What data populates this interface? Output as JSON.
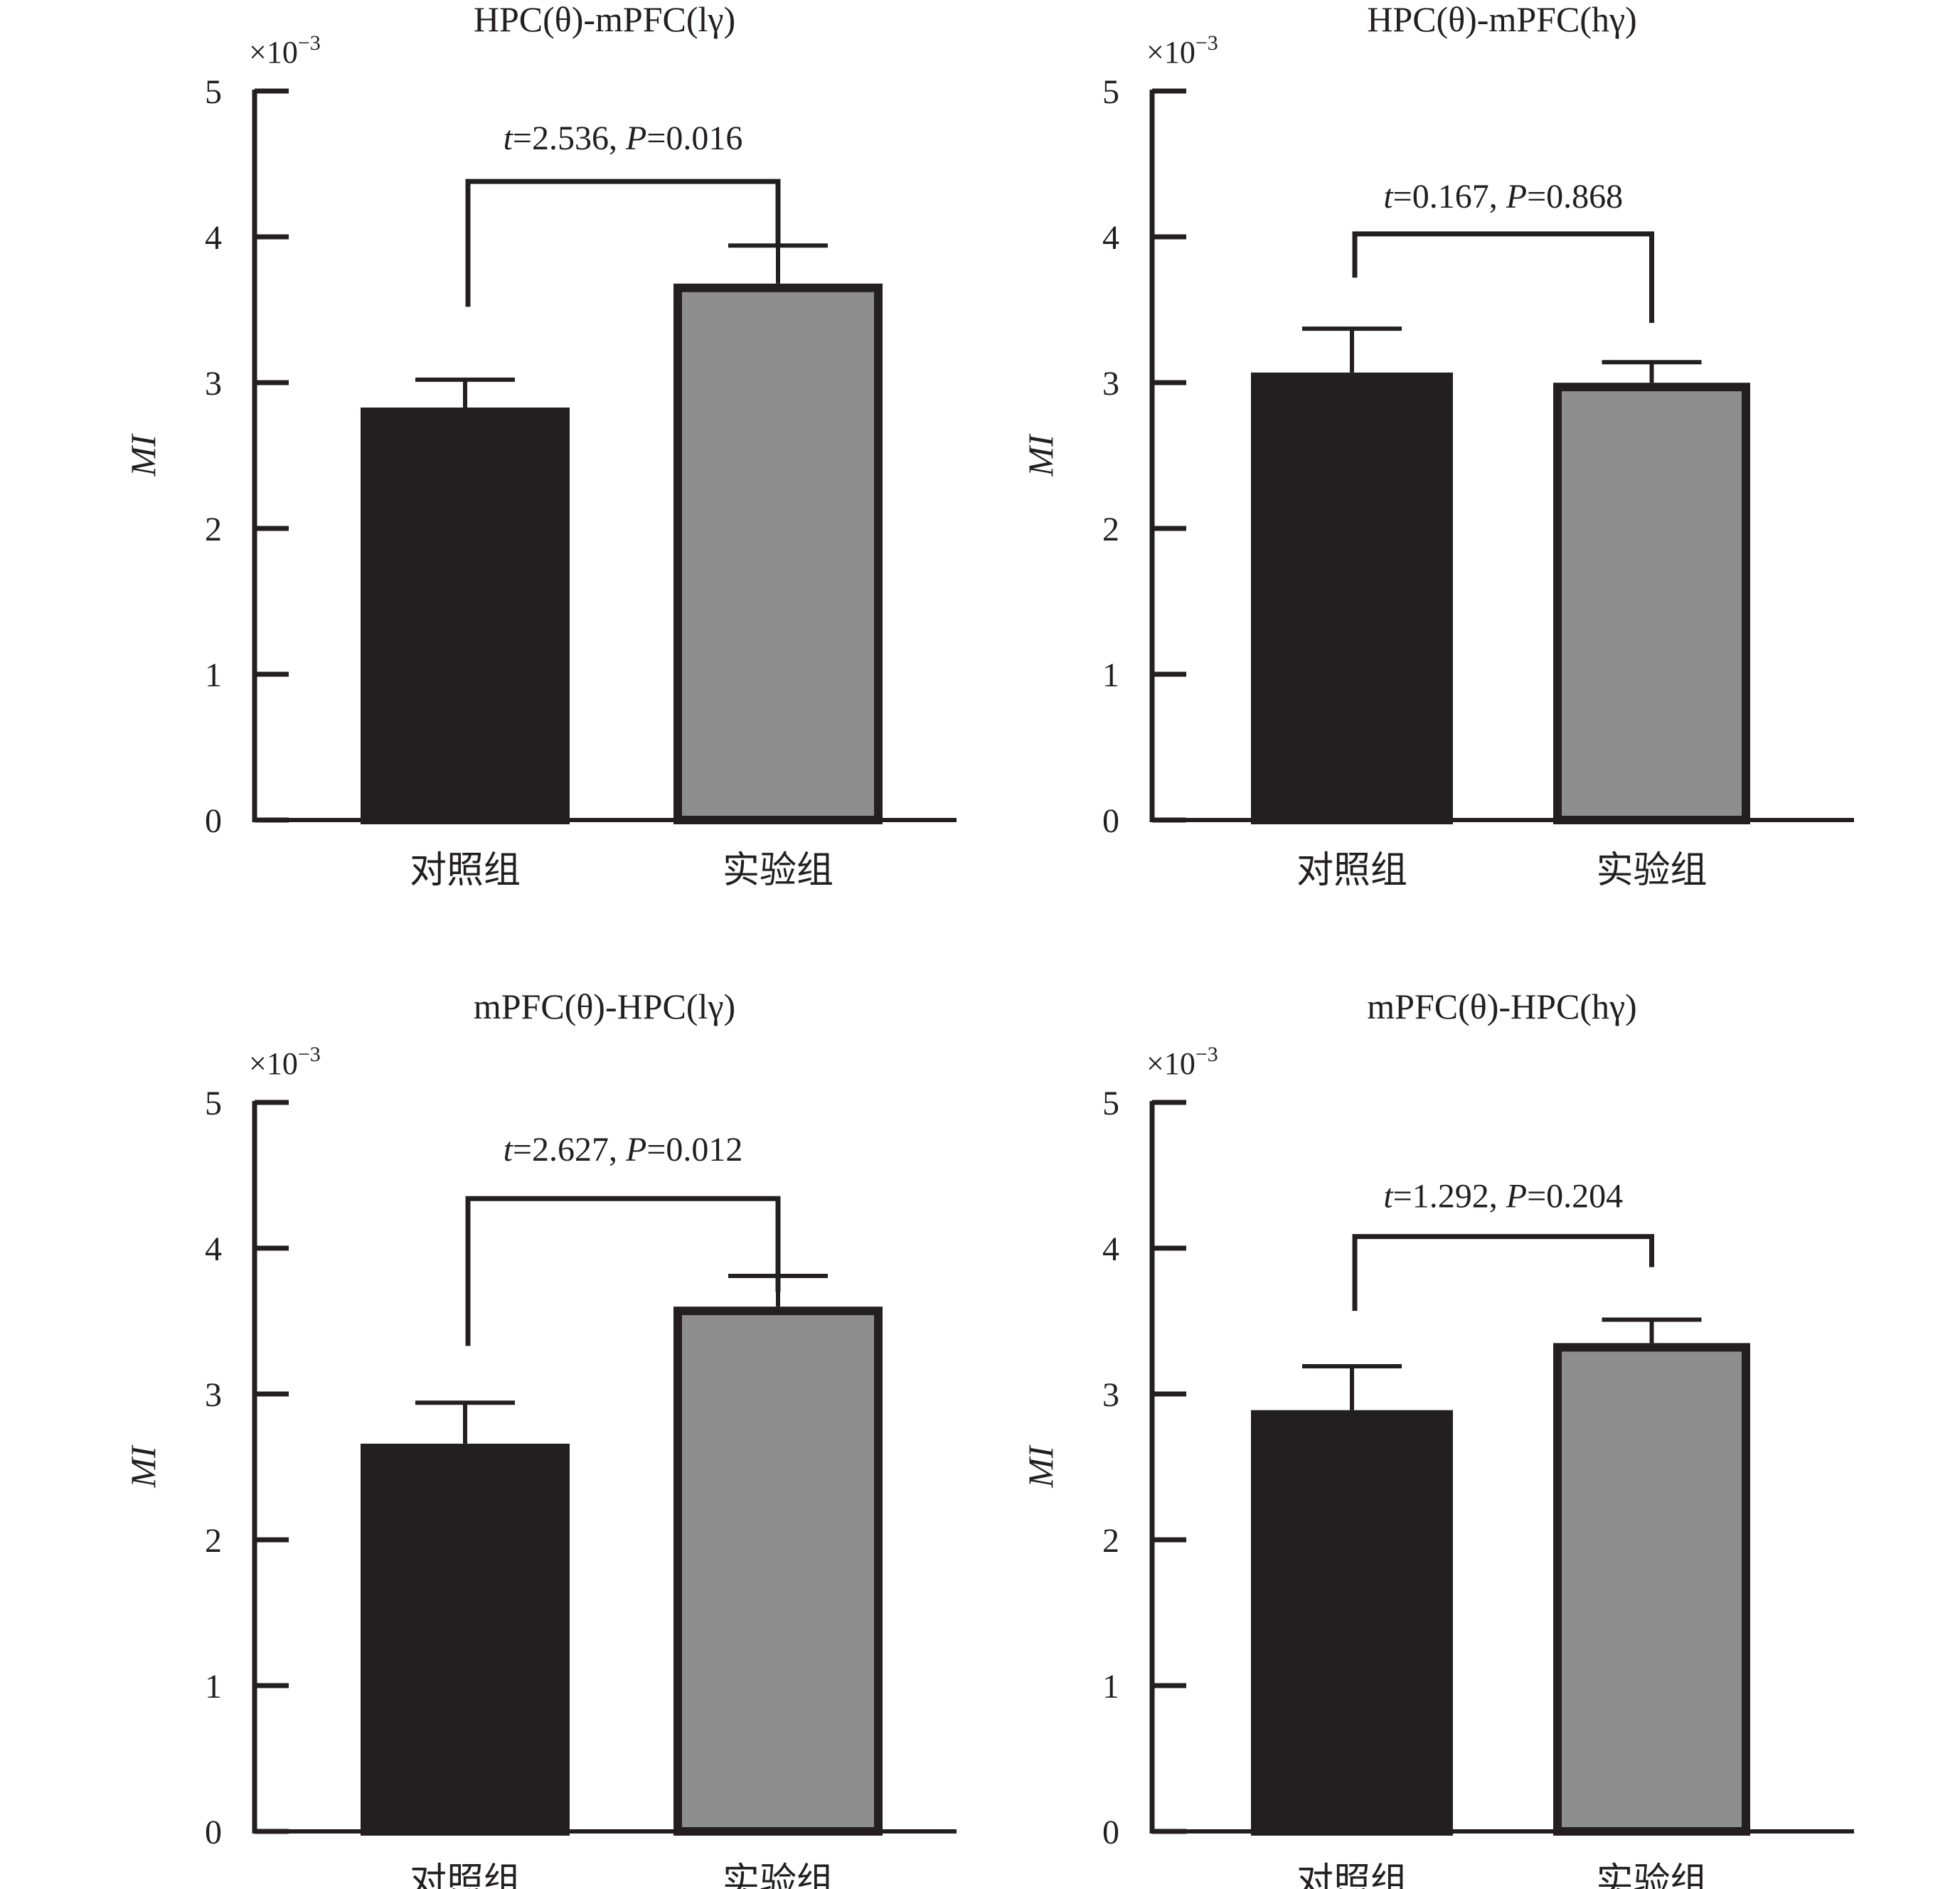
{
  "chart_data": [
    {
      "type": "bar",
      "title": "HPC(θ)-mPFC(lγ)",
      "ylabel": "MI",
      "yscale_note": "×10",
      "yscale_exp": "−3",
      "ylim": [
        0,
        5
      ],
      "yticks": [
        "0",
        "1",
        "2",
        "3",
        "4",
        "5"
      ],
      "categories": [
        "对照组",
        "实验组"
      ],
      "values": [
        2.8,
        3.65
      ],
      "errors": [
        0.22,
        0.29
      ],
      "colors": [
        "#231f20",
        "#8f8e8e"
      ],
      "stat": {
        "t_label": "t",
        "t_val": "=2.536, ",
        "p_label": "P",
        "p_val": "=0.016"
      },
      "bracket_drops": [
        3.52,
        3.93
      ],
      "bracket_level": 4.38,
      "stat_label_level": 4.6
    },
    {
      "type": "bar",
      "title": "HPC(θ)-mPFC(hγ)",
      "ylabel": "MI",
      "yscale_note": "×10",
      "yscale_exp": "−3",
      "ylim": [
        0,
        5
      ],
      "yticks": [
        "0",
        "1",
        "2",
        "3",
        "4",
        "5"
      ],
      "categories": [
        "对照组",
        "实验组"
      ],
      "values": [
        3.04,
        2.97
      ],
      "errors": [
        0.33,
        0.17
      ],
      "colors": [
        "#231f20",
        "#8f8e8e"
      ],
      "stat": {
        "t_label": "t",
        "t_val": "=0.167, ",
        "p_label": "P",
        "p_val": "=0.868"
      },
      "bracket_drops": [
        3.72,
        3.41
      ],
      "bracket_level": 4.02,
      "stat_label_level": 4.2
    },
    {
      "type": "bar",
      "title": "mPFC(θ)-HPC(lγ)",
      "ylabel": "MI",
      "yscale_note": "×10",
      "yscale_exp": "−3",
      "ylim": [
        0,
        5
      ],
      "yticks": [
        "0",
        "1",
        "2",
        "3",
        "4",
        "5"
      ],
      "categories": [
        "对照组",
        "实验组"
      ],
      "values": [
        2.63,
        3.57
      ],
      "errors": [
        0.31,
        0.24
      ],
      "colors": [
        "#231f20",
        "#8f8e8e"
      ],
      "stat": {
        "t_label": "t",
        "t_val": "=2.627, ",
        "p_label": "P",
        "p_val": "=0.012"
      },
      "bracket_drops": [
        3.33,
        3.7
      ],
      "bracket_level": 4.34,
      "stat_label_level": 4.6
    },
    {
      "type": "bar",
      "title": "mPFC(θ)-HPC(hγ)",
      "ylabel": "MI",
      "yscale_note": "×10",
      "yscale_exp": "−3",
      "ylim": [
        0,
        5
      ],
      "yticks": [
        "0",
        "1",
        "2",
        "3",
        "4",
        "5"
      ],
      "categories": [
        "对照组",
        "实验组"
      ],
      "values": [
        2.86,
        3.32
      ],
      "errors": [
        0.33,
        0.19
      ],
      "colors": [
        "#231f20",
        "#8f8e8e"
      ],
      "stat": {
        "t_label": "t",
        "t_val": "=1.292, ",
        "p_label": "P",
        "p_val": "=0.204"
      },
      "bracket_drops": [
        3.57,
        3.87
      ],
      "bracket_level": 4.08,
      "stat_label_level": 4.28
    }
  ]
}
